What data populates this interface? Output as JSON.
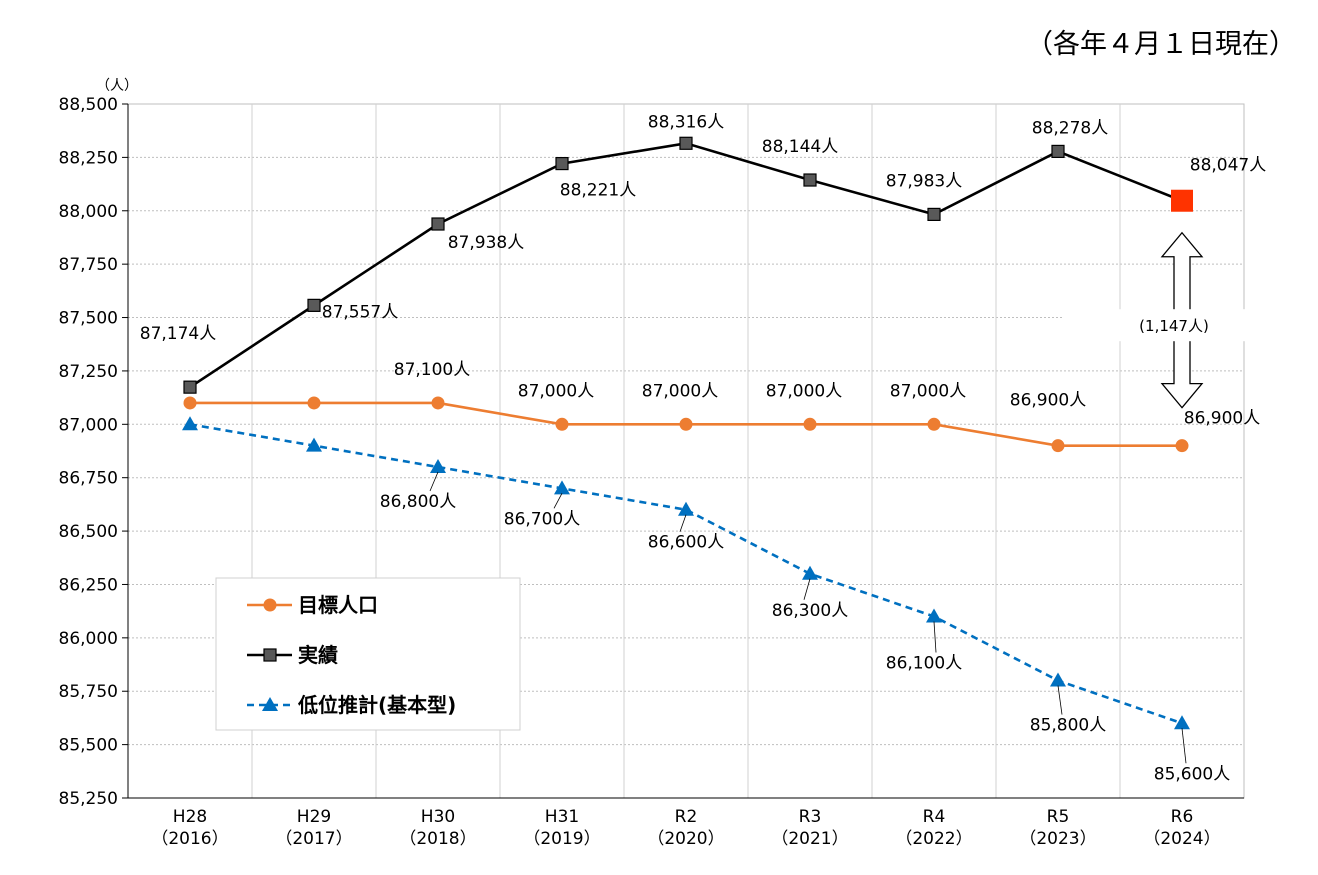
{
  "note": "（各年４月１日現在）",
  "chart_data": {
    "type": "line",
    "yunit": "（人）",
    "ylim": [
      85250,
      88500
    ],
    "yticks": [
      88500,
      88250,
      88000,
      87750,
      87500,
      87250,
      87000,
      86750,
      86500,
      86250,
      86000,
      85750,
      85500,
      85250
    ],
    "ytick_labels": [
      "88,500",
      "88,250",
      "88,000",
      "87,750",
      "87,500",
      "87,250",
      "87,000",
      "86,750",
      "86,500",
      "86,250",
      "86,000",
      "85,750",
      "85,500",
      "85,250"
    ],
    "categories": [
      "H28",
      "H29",
      "H30",
      "H31",
      "R2",
      "R3",
      "R4",
      "R5",
      "R6"
    ],
    "category_years": [
      "（2016）",
      "（2017）",
      "（2018）",
      "（2019）",
      "（2020）",
      "（2021）",
      "（2022）",
      "（2023）",
      "（2024）"
    ],
    "grid": true,
    "series": [
      {
        "name": "目標人口",
        "color": "#ED7D31",
        "marker": "circle",
        "dash": false,
        "values": [
          87100,
          87100,
          87100,
          87000,
          87000,
          87000,
          87000,
          86900,
          86900
        ],
        "labels": [
          null,
          null,
          "87,100人",
          "87,000人",
          "87,000人",
          "87,000人",
          "87,000人",
          "86,900人",
          "86,900人"
        ]
      },
      {
        "name": "実績",
        "color": "#000000",
        "marker": "square",
        "dash": false,
        "values": [
          87174,
          87557,
          87938,
          88221,
          88316,
          88144,
          87983,
          88278,
          88047
        ],
        "labels": [
          "87,174人",
          "87,557人",
          "87,938人",
          "88,221人",
          "88,316人",
          "88,144人",
          "87,983人",
          "88,278人",
          "88,047人"
        ],
        "highlight_color": "#FF3300"
      },
      {
        "name": "低位推計(基本型)",
        "color": "#0070C0",
        "marker": "triangle",
        "dash": true,
        "values": [
          87000,
          86900,
          86800,
          86700,
          86600,
          86300,
          86100,
          85800,
          85600
        ],
        "labels": [
          null,
          null,
          "86,800人",
          "86,700人",
          "86,600人",
          "86,300人",
          "86,100人",
          "85,800人",
          "85,600人"
        ]
      }
    ],
    "annotation": {
      "text": "(1,147人)",
      "between": [
        88047,
        86900
      ],
      "category": "R6"
    },
    "legend_position": "bottom-left"
  }
}
